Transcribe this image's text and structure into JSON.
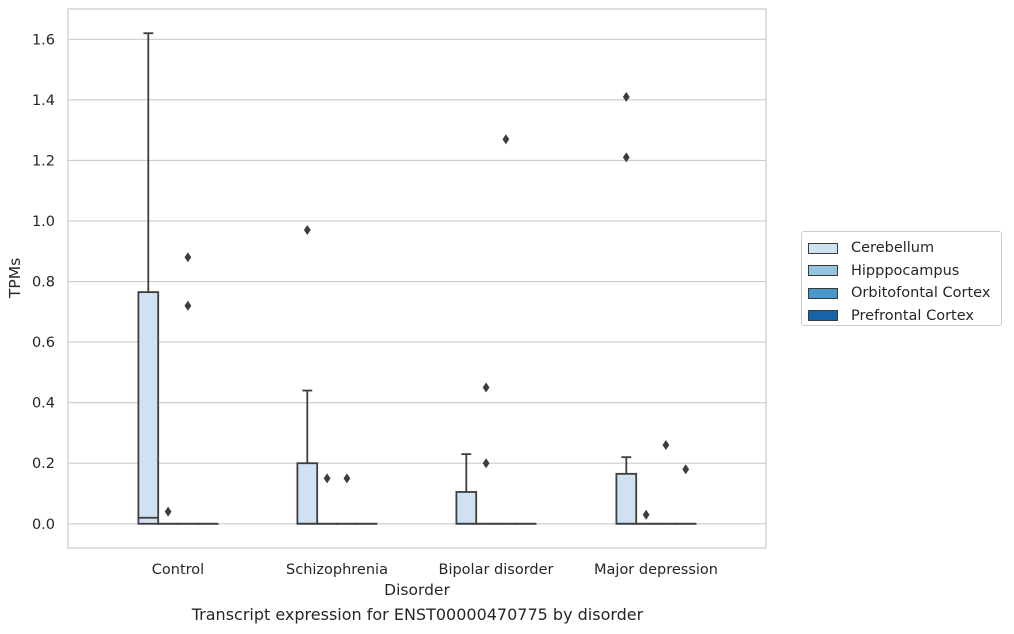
{
  "chart_data": {
    "type": "box",
    "xlabel": "Disorder",
    "ylabel": "TPMs",
    "caption": "Transcript expression for ENST00000470775 by disorder",
    "categories": [
      "Control",
      "Schizophrenia",
      "Bipolar disorder",
      "Major depression"
    ],
    "ylim": [
      -0.08,
      1.7
    ],
    "yticks": [
      0.0,
      0.2,
      0.4,
      0.6,
      0.8,
      1.0,
      1.2,
      1.4,
      1.6
    ],
    "ytick_labels": [
      "0.0",
      "0.2",
      "0.4",
      "0.6",
      "0.8",
      "1.0",
      "1.2",
      "1.4",
      "1.6"
    ],
    "grid": true,
    "legend_position": "right",
    "series": [
      {
        "name": "Cerebellum",
        "color": "#d0e1f2",
        "boxes": [
          {
            "min": 0.0,
            "q1": 0.0,
            "median": 0.02,
            "q3": 0.765,
            "max": 1.62,
            "outliers": []
          },
          {
            "min": 0.0,
            "q1": 0.0,
            "median": 0.0,
            "q3": 0.2,
            "max": 0.44,
            "outliers": [
              0.97
            ]
          },
          {
            "min": 0.0,
            "q1": 0.0,
            "median": 0.0,
            "q3": 0.105,
            "max": 0.23,
            "outliers": []
          },
          {
            "min": 0.0,
            "q1": 0.0,
            "median": 0.0,
            "q3": 0.165,
            "max": 0.22,
            "outliers": [
              1.21,
              1.41
            ]
          }
        ]
      },
      {
        "name": "Hipppocampus",
        "color": "#94c4df",
        "boxes": [
          {
            "min": 0.0,
            "q1": 0.0,
            "median": 0.0,
            "q3": 0.0,
            "max": 0.0,
            "outliers": [
              0.04
            ]
          },
          {
            "min": 0.0,
            "q1": 0.0,
            "median": 0.0,
            "q3": 0.0,
            "max": 0.0,
            "outliers": [
              0.15
            ]
          },
          {
            "min": 0.0,
            "q1": 0.0,
            "median": 0.0,
            "q3": 0.0,
            "max": 0.0,
            "outliers": [
              0.2,
              0.45
            ]
          },
          {
            "min": 0.0,
            "q1": 0.0,
            "median": 0.0,
            "q3": 0.0,
            "max": 0.0,
            "outliers": [
              0.03
            ]
          }
        ]
      },
      {
        "name": "Orbitofontal Cortex",
        "color": "#4a98c9",
        "boxes": [
          {
            "min": 0.0,
            "q1": 0.0,
            "median": 0.0,
            "q3": 0.0,
            "max": 0.0,
            "outliers": [
              0.72,
              0.88
            ]
          },
          {
            "min": 0.0,
            "q1": 0.0,
            "median": 0.0,
            "q3": 0.0,
            "max": 0.0,
            "outliers": [
              0.15
            ]
          },
          {
            "min": 0.0,
            "q1": 0.0,
            "median": 0.0,
            "q3": 0.0,
            "max": 0.0,
            "outliers": [
              1.27
            ]
          },
          {
            "min": 0.0,
            "q1": 0.0,
            "median": 0.0,
            "q3": 0.0,
            "max": 0.0,
            "outliers": [
              0.26
            ]
          }
        ]
      },
      {
        "name": "Prefrontal Cortex",
        "color": "#1764ab",
        "boxes": [
          {
            "min": 0.0,
            "q1": 0.0,
            "median": 0.0,
            "q3": 0.0,
            "max": 0.0,
            "outliers": []
          },
          {
            "min": 0.0,
            "q1": 0.0,
            "median": 0.0,
            "q3": 0.0,
            "max": 0.0,
            "outliers": []
          },
          {
            "min": 0.0,
            "q1": 0.0,
            "median": 0.0,
            "q3": 0.0,
            "max": 0.0,
            "outliers": []
          },
          {
            "min": 0.0,
            "q1": 0.0,
            "median": 0.0,
            "q3": 0.0,
            "max": 0.0,
            "outliers": [
              0.18
            ]
          }
        ]
      }
    ]
  },
  "style": {
    "grid_color": "#cccccc",
    "frame_color": "#cccccc",
    "line_color": "#3d3d3d",
    "outlier_color": "#3d3d3d"
  }
}
